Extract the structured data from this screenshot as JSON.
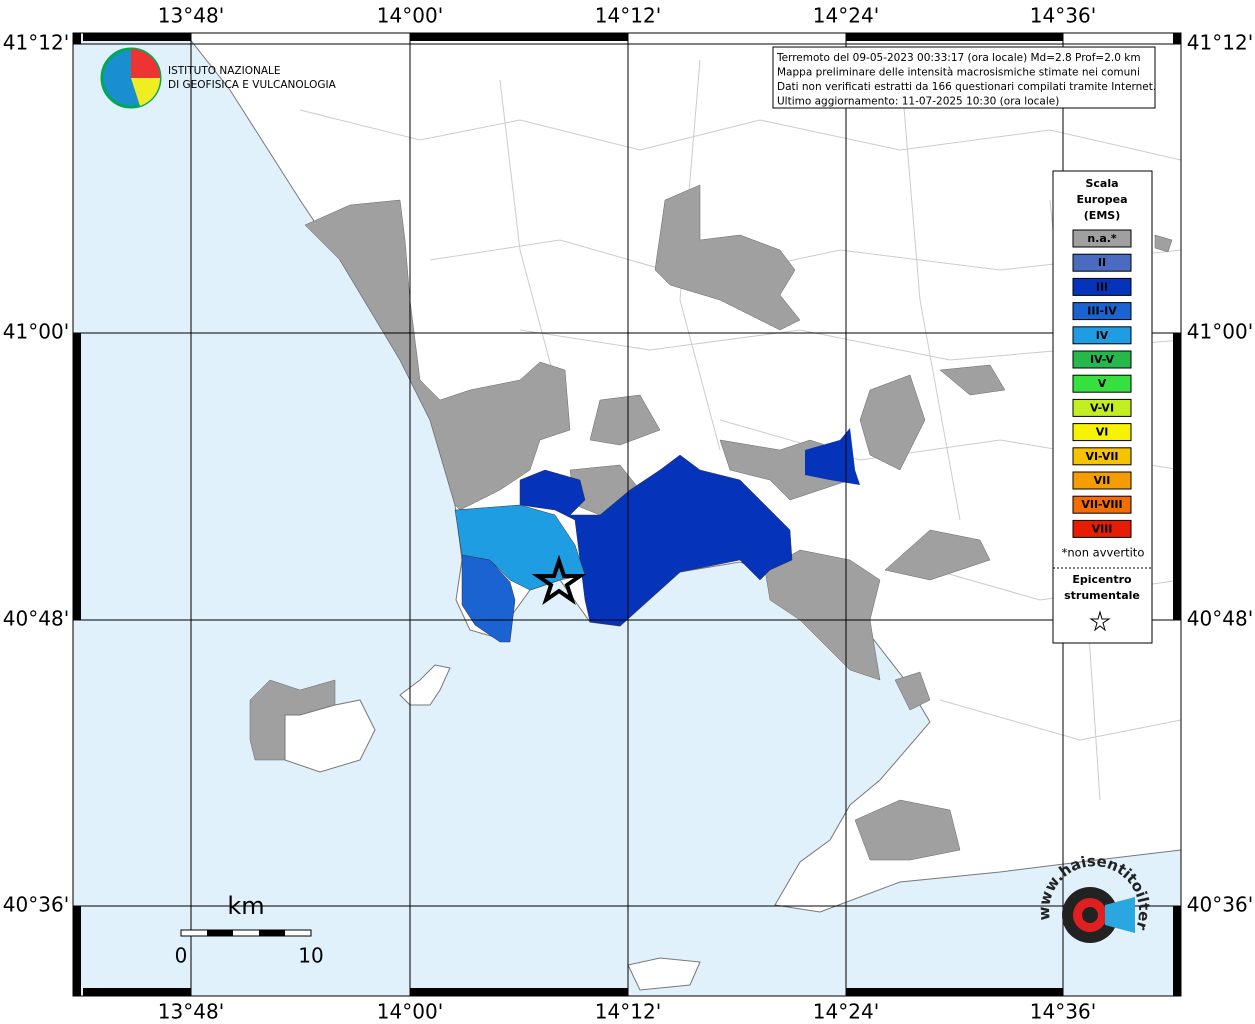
{
  "map": {
    "top_ticks": [
      "13°48'",
      "14°00'",
      "14°12'",
      "14°24'",
      "14°36'"
    ],
    "bottom_ticks": [
      "13°48'",
      "14°00'",
      "14°12'",
      "14°24'",
      "14°36'"
    ],
    "left_ticks": [
      "41°12'",
      "41°00'",
      "40°48'",
      "40°36'"
    ],
    "right_ticks": [
      "41°12'",
      "41°00'",
      "40°48'",
      "40°36'"
    ]
  },
  "info": [
    "Terremoto del 09-05-2023 00:33:17 (ora locale) Md=2.8 Prof=2.0 km",
    "Mappa preliminare delle intensità macrosismiche stimate nei comuni",
    "Dati non verificati estratti da 166 questionari compilati tramite Internet.",
    "Ultimo aggiornamento: 11-07-2025 10:30 (ora locale)"
  ],
  "institute": [
    "ISTITUTO NAZIONALE",
    "DI GEOFISICA E VULCANOLOGIA"
  ],
  "legend": {
    "title": [
      "Scala",
      "Europea",
      "(EMS)"
    ],
    "classes": [
      {
        "label": "n.a.*",
        "color": "#a0a0a0"
      },
      {
        "label": "II",
        "color": "#4a6cc0"
      },
      {
        "label": "III",
        "color": "#0534bb"
      },
      {
        "label": "III-IV",
        "color": "#1a63d0"
      },
      {
        "label": "IV",
        "color": "#1f9de2"
      },
      {
        "label": "IV-V",
        "color": "#27b84c"
      },
      {
        "label": "V",
        "color": "#36e03f"
      },
      {
        "label": "V-VI",
        "color": "#c2ee22"
      },
      {
        "label": "VI",
        "color": "#f6f200"
      },
      {
        "label": "VI-VII",
        "color": "#f6c300"
      },
      {
        "label": "VII",
        "color": "#f69c00"
      },
      {
        "label": "VII-VIII",
        "color": "#f56c00"
      },
      {
        "label": "VIII",
        "color": "#e81c00"
      }
    ],
    "note": "*non avvertito",
    "epicenter": [
      "Epicentro",
      "strumentale"
    ]
  },
  "scale": {
    "unit": "km",
    "labels": [
      "0",
      "10"
    ]
  },
  "site": "www.haisentitoilterremoto.it"
}
